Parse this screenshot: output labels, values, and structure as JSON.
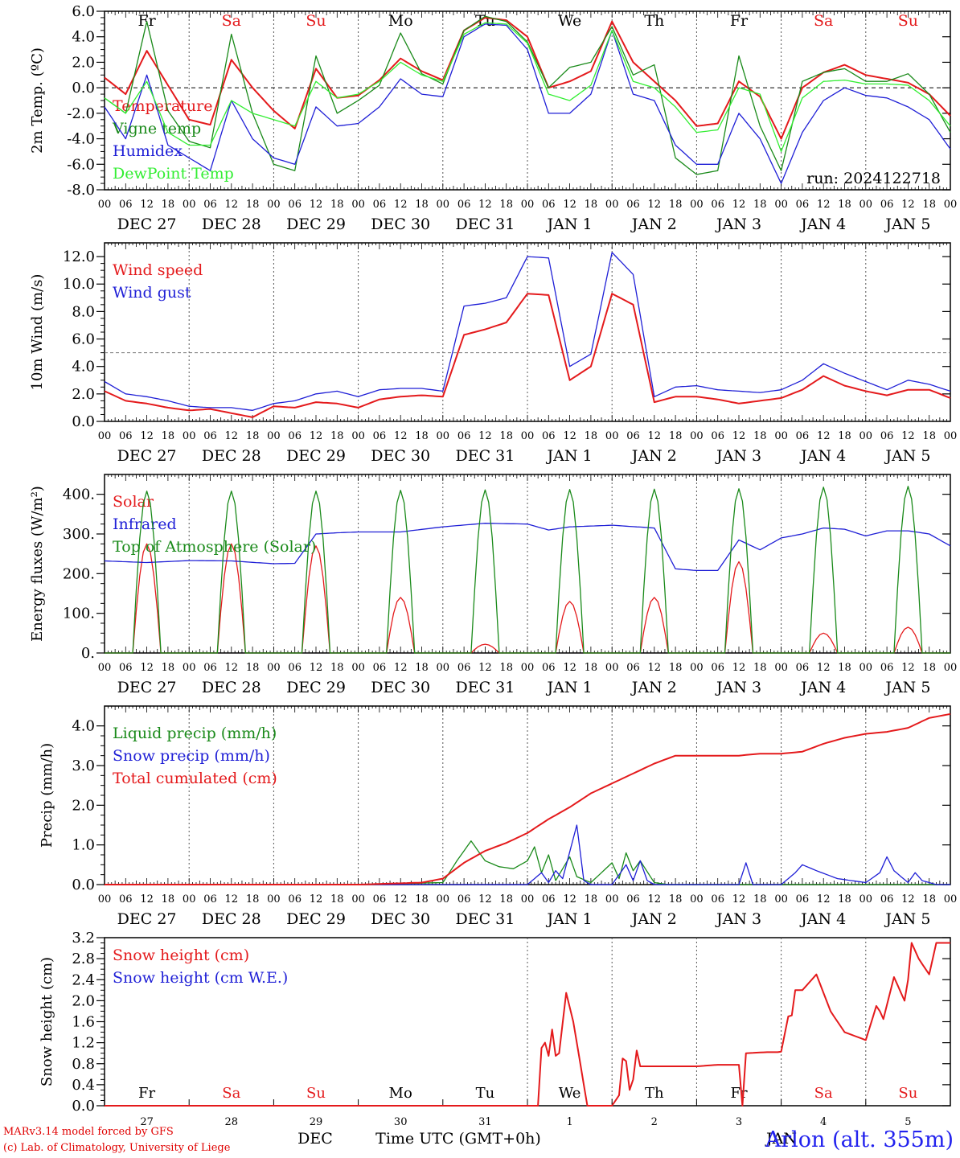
{
  "colors": {
    "red": "#e41a1c",
    "darkgreen": "#1a8a1a",
    "blue": "#1f1fd6",
    "lightgreen": "#33ee33",
    "axis": "#000000",
    "grid": "#555555",
    "hline": "#777777"
  },
  "credit_line1": "MARv3.14 model forced by GFS",
  "credit_line2": "(c) Lab. of Climatology, University of Liege",
  "station": "Arlon (alt. 355m)",
  "bottom_month": "DEC",
  "bottom_month2": "JAN",
  "bottom_xlabel": "Time UTC (GMT+0h)",
  "run_label": "run: 2024122718",
  "chart_data": [
    {
      "id": "temp",
      "type": "line",
      "ylabel": "2m Temp. (ºC)",
      "ylim": [
        -8,
        6
      ],
      "yticks": [
        "6.0",
        "4.0",
        "2.0",
        "0.0",
        "-2.0",
        "-4.0",
        "-6.0",
        "-8.0"
      ],
      "hline": 0,
      "day_names": [
        "Fr",
        "Sa",
        "Su",
        "Mo",
        "Tu",
        "We",
        "Th",
        "Fr",
        "Sa",
        "Su"
      ],
      "day_name_colors": [
        "black",
        "red",
        "red",
        "black",
        "black",
        "black",
        "black",
        "black",
        "red",
        "red"
      ],
      "date_labels": [
        "DEC 27",
        "DEC 28",
        "DEC 29",
        "DEC 30",
        "DEC 31",
        "JAN 1",
        "JAN 2",
        "JAN 3",
        "JAN 4",
        "JAN 5"
      ],
      "hour_labels": [
        "00",
        "06",
        "12",
        "18"
      ],
      "x_hours": [
        0,
        6,
        12,
        18,
        24,
        30,
        36,
        42,
        48,
        54,
        60,
        66,
        72,
        78,
        84,
        90,
        96,
        102,
        108,
        114,
        120,
        126,
        132,
        138,
        144,
        150,
        156,
        162,
        168,
        174,
        180,
        186,
        192,
        198,
        204,
        210,
        216,
        222,
        228,
        234,
        240
      ],
      "series": [
        {
          "name": "Temperature",
          "color": "red",
          "values": [
            0.8,
            -0.5,
            2.9,
            0.2,
            -2.5,
            -2.9,
            2.2,
            0.0,
            -1.8,
            -3.2,
            1.5,
            -0.8,
            -0.6,
            0.6,
            2.3,
            1.3,
            0.6,
            4.5,
            5.5,
            5.3,
            4.0,
            0.0,
            0.5,
            1.3,
            5.2,
            2.0,
            0.5,
            -1.0,
            -3.0,
            -2.8,
            0.5,
            -0.7,
            -4.0,
            0.0,
            1.2,
            1.8,
            1.0,
            0.7,
            0.4,
            -0.5,
            -2.2
          ]
        },
        {
          "name": "Vigne temp",
          "color": "darkgreen",
          "values": [
            -0.8,
            -2.0,
            5.2,
            -1.8,
            -4.2,
            -4.7,
            4.2,
            -2.0,
            -6.0,
            -6.5,
            2.5,
            -2.0,
            -1.0,
            0.2,
            4.3,
            1.1,
            0.3,
            4.5,
            5.6,
            5.2,
            3.6,
            0.0,
            1.6,
            2.0,
            4.8,
            1.0,
            1.8,
            -5.5,
            -6.8,
            -6.5,
            2.5,
            -3.0,
            -6.5,
            0.5,
            1.2,
            1.5,
            0.5,
            0.5,
            1.1,
            -0.5,
            -3.5
          ]
        },
        {
          "name": "Humidex",
          "color": "blue",
          "values": [
            -1.5,
            -4.0,
            1.0,
            -4.5,
            -5.5,
            -6.5,
            -1.0,
            -4.0,
            -5.5,
            -6.0,
            -1.5,
            -3.0,
            -2.8,
            -1.5,
            0.7,
            -0.5,
            -0.7,
            4.0,
            5.0,
            4.9,
            3.0,
            -2.0,
            -2.0,
            -0.5,
            4.5,
            -0.5,
            -1.0,
            -4.5,
            -6.0,
            -6.0,
            -2.0,
            -4.0,
            -7.5,
            -3.5,
            -1.0,
            0.0,
            -0.6,
            -0.8,
            -1.5,
            -2.5,
            -4.8
          ]
        },
        {
          "name": "DewPoint Temp",
          "color": "lightgreen",
          "values": [
            -0.8,
            -2.0,
            0.5,
            -3.5,
            -4.5,
            -4.5,
            -1.0,
            -2.0,
            -2.5,
            -3.0,
            0.5,
            -0.8,
            -0.5,
            0.5,
            2.0,
            1.0,
            0.5,
            4.2,
            5.1,
            5.0,
            3.5,
            -0.5,
            -1.0,
            0.2,
            4.5,
            0.5,
            0.0,
            -1.5,
            -3.5,
            -3.3,
            0.0,
            -0.5,
            -5.0,
            -0.8,
            0.5,
            0.6,
            0.3,
            0.3,
            0.2,
            -1.0,
            -3.0
          ]
        }
      ]
    },
    {
      "id": "wind",
      "type": "line",
      "ylabel": "10m Wind (m/s)",
      "ylim": [
        0,
        13
      ],
      "yticks": [
        "12.0",
        "10.0",
        "8.0",
        "6.0",
        "4.0",
        "2.0",
        "0.0"
      ],
      "hline": 5,
      "date_labels": [
        "DEC 27",
        "DEC 28",
        "DEC 29",
        "DEC 30",
        "DEC 31",
        "JAN 1",
        "JAN 2",
        "JAN 3",
        "JAN 4",
        "JAN 5"
      ],
      "hour_labels": [
        "00",
        "06",
        "12",
        "18"
      ],
      "x_hours": [
        0,
        6,
        12,
        18,
        24,
        30,
        36,
        42,
        48,
        54,
        60,
        66,
        72,
        78,
        84,
        90,
        96,
        102,
        108,
        114,
        120,
        126,
        132,
        138,
        144,
        150,
        156,
        162,
        168,
        174,
        180,
        186,
        192,
        198,
        204,
        210,
        216,
        222,
        228,
        234,
        240
      ],
      "series": [
        {
          "name": "Wind speed",
          "color": "red",
          "values": [
            2.2,
            1.5,
            1.3,
            1.0,
            0.8,
            0.9,
            0.6,
            0.3,
            1.1,
            1.0,
            1.4,
            1.3,
            1.0,
            1.6,
            1.8,
            1.9,
            1.8,
            6.3,
            6.7,
            7.2,
            9.3,
            9.2,
            3.0,
            4.0,
            9.3,
            8.5,
            1.4,
            1.8,
            1.8,
            1.6,
            1.3,
            1.5,
            1.7,
            2.3,
            3.3,
            2.6,
            2.2,
            1.9,
            2.3,
            2.3,
            1.7
          ]
        },
        {
          "name": "Wind gust",
          "color": "blue",
          "values": [
            2.9,
            2.0,
            1.8,
            1.5,
            1.1,
            1.0,
            1.0,
            0.8,
            1.3,
            1.5,
            2.0,
            2.2,
            1.8,
            2.3,
            2.4,
            2.4,
            2.2,
            8.4,
            8.6,
            9.0,
            12.0,
            11.9,
            4.0,
            4.9,
            12.3,
            10.7,
            1.8,
            2.5,
            2.6,
            2.3,
            2.2,
            2.1,
            2.3,
            3.0,
            4.2,
            3.5,
            2.9,
            2.3,
            3.0,
            2.7,
            2.2
          ]
        }
      ]
    },
    {
      "id": "energy",
      "type": "line",
      "ylabel": "Energy fluxes (W/m²)",
      "ylim": [
        0,
        450
      ],
      "yticks": [
        "400.",
        "300.",
        "200.",
        "100.",
        "0."
      ],
      "date_labels": [
        "DEC 27",
        "DEC 28",
        "DEC 29",
        "DEC 30",
        "DEC 31",
        "JAN 1",
        "JAN 2",
        "JAN 3",
        "JAN 4",
        "JAN 5"
      ],
      "hour_labels": [
        "00",
        "06",
        "12",
        "18"
      ],
      "series": [
        {
          "name": "Solar",
          "color": "red",
          "daily_peak": [
            275,
            275,
            270,
            140,
            22,
            130,
            140,
            230,
            50,
            65
          ]
        },
        {
          "name": "Infrared",
          "color": "blue",
          "x_hours": [
            0,
            12,
            24,
            36,
            48,
            54,
            60,
            66,
            72,
            84,
            96,
            108,
            120,
            126,
            132,
            144,
            156,
            162,
            168,
            174,
            180,
            186,
            192,
            198,
            204,
            210,
            216,
            222,
            228,
            234,
            240
          ],
          "values": [
            232,
            228,
            233,
            232,
            225,
            226,
            300,
            303,
            305,
            305,
            318,
            327,
            325,
            310,
            318,
            322,
            315,
            212,
            208,
            208,
            285,
            260,
            290,
            300,
            315,
            312,
            295,
            308,
            308,
            300,
            270
          ]
        },
        {
          "name": "Top of Atmosphere (Solar)",
          "color": "darkgreen",
          "daily_peak": [
            408,
            408,
            408,
            410,
            411,
            412,
            413,
            414,
            418,
            420
          ]
        }
      ]
    },
    {
      "id": "precip",
      "type": "line",
      "ylabel": "Precip (mm/h)",
      "ylim": [
        0,
        4.5
      ],
      "yticks": [
        "4.0",
        "3.0",
        "2.0",
        "1.0",
        "0.0"
      ],
      "date_labels": [
        "DEC 27",
        "DEC 28",
        "DEC 29",
        "DEC 30",
        "DEC 31",
        "JAN 1",
        "JAN 2",
        "JAN 3",
        "JAN 4",
        "JAN 5"
      ],
      "hour_labels": [
        "00",
        "06",
        "12",
        "18"
      ],
      "series": [
        {
          "name": "Liquid precip (mm/h)",
          "color": "darkgreen",
          "x_hours": [
            0,
            72,
            96,
            100,
            104,
            108,
            112,
            116,
            120,
            122,
            124,
            126,
            128,
            132,
            134,
            138,
            144,
            146,
            148,
            150,
            152,
            156,
            160,
            168,
            180,
            240
          ],
          "values": [
            0,
            0,
            0.05,
            0.6,
            1.1,
            0.6,
            0.45,
            0.4,
            0.6,
            0.95,
            0.3,
            0.75,
            0.1,
            0.7,
            0.2,
            0.05,
            0.55,
            0.15,
            0.8,
            0.35,
            0.6,
            0.05,
            0,
            0,
            0,
            0
          ]
        },
        {
          "name": "Snow precip (mm/h)",
          "color": "blue",
          "x_hours": [
            0,
            120,
            124,
            126,
            128,
            130,
            134,
            136,
            138,
            144,
            148,
            150,
            152,
            154,
            156,
            162,
            180,
            182,
            184,
            192,
            196,
            198,
            202,
            208,
            216,
            220,
            222,
            224,
            228,
            230,
            232,
            236,
            238,
            240
          ],
          "values": [
            0,
            0,
            0.3,
            0.05,
            0.35,
            0.15,
            1.5,
            0.1,
            0.0,
            0.0,
            0.5,
            0.1,
            0.6,
            0.1,
            0.0,
            0,
            0,
            0.55,
            0,
            0,
            0.3,
            0.5,
            0.35,
            0.15,
            0.05,
            0.3,
            0.7,
            0.35,
            0.05,
            0.3,
            0.1,
            0.0,
            0.0,
            0
          ]
        },
        {
          "name": "Total cumulated (cm)",
          "color": "red",
          "x_hours": [
            0,
            72,
            90,
            96,
            102,
            108,
            114,
            120,
            126,
            132,
            138,
            144,
            150,
            156,
            162,
            168,
            174,
            180,
            186,
            192,
            198,
            204,
            210,
            216,
            222,
            228,
            234,
            240
          ],
          "values": [
            0.0,
            0.0,
            0.05,
            0.15,
            0.55,
            0.85,
            1.05,
            1.3,
            1.65,
            1.95,
            2.3,
            2.55,
            2.8,
            3.05,
            3.25,
            3.25,
            3.25,
            3.25,
            3.3,
            3.3,
            3.35,
            3.55,
            3.7,
            3.8,
            3.85,
            3.95,
            4.2,
            4.3
          ]
        }
      ]
    },
    {
      "id": "snow",
      "type": "line",
      "ylabel": "Snow height (cm)",
      "ylim": [
        0,
        3.2
      ],
      "yticks": [
        "3.2",
        "2.8",
        "2.4",
        "2.0",
        "1.6",
        "1.2",
        "0.8",
        "0.4",
        "0.0"
      ],
      "day_names": [
        "Fr",
        "Sa",
        "Su",
        "Mo",
        "Tu",
        "We",
        "Th",
        "Fr",
        "Sa",
        "Su"
      ],
      "day_name_colors": [
        "black",
        "red",
        "red",
        "black",
        "black",
        "black",
        "black",
        "black",
        "red",
        "red"
      ],
      "day_numbers": [
        "27",
        "28",
        "29",
        "30",
        "31",
        "1",
        "2",
        "3",
        "4",
        "5"
      ],
      "series": [
        {
          "name": "Snow height (cm)",
          "color": "red",
          "x_hours": [
            0,
            120,
            123,
            124,
            125,
            126,
            127,
            128,
            129,
            131,
            133,
            135,
            137,
            144,
            146,
            147,
            148,
            149,
            150,
            151,
            152,
            158,
            168,
            174,
            180,
            181,
            182,
            188,
            189,
            190,
            191,
            192,
            194,
            195,
            196,
            198,
            202,
            206,
            210,
            216,
            219,
            220,
            221,
            224,
            227,
            228,
            229,
            231,
            233,
            234,
            236,
            240
          ],
          "values": [
            0,
            0,
            0,
            1.1,
            1.2,
            0.95,
            1.45,
            0.95,
            1.0,
            2.15,
            1.6,
            0.8,
            0,
            0,
            0.2,
            0.9,
            0.85,
            0.3,
            0.5,
            1.05,
            0.75,
            0.75,
            0.75,
            0.78,
            0.78,
            0,
            1.0,
            1.02,
            1.02,
            1.02,
            1.02,
            1.03,
            1.7,
            1.72,
            2.2,
            2.2,
            2.5,
            1.8,
            1.4,
            1.25,
            1.9,
            1.8,
            1.65,
            2.45,
            2.0,
            2.4,
            3.1,
            2.8,
            2.6,
            2.5,
            3.1,
            3.1
          ]
        },
        {
          "name": "Snow height (cm W.E.)",
          "color": "blue"
        }
      ]
    }
  ]
}
